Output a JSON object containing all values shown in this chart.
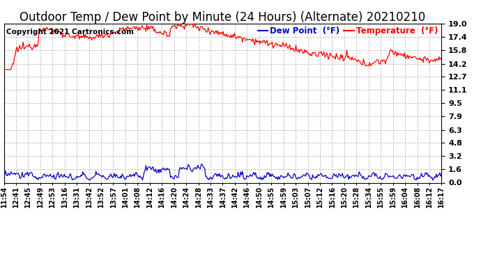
{
  "title": "Outdoor Temp / Dew Point by Minute (24 Hours) (Alternate) 20210210",
  "copyright": "Copyright 2021 Cartronics.com",
  "legend_dew": "Dew Point  (°F)",
  "legend_temp": "Temperature  (°F)",
  "temp_color": "#ff0000",
  "dew_color": "#0000cc",
  "background_color": "#ffffff",
  "grid_color": "#bbbbbb",
  "ylim": [
    0.0,
    19.0
  ],
  "yticks": [
    0.0,
    1.6,
    3.2,
    4.8,
    6.3,
    7.9,
    9.5,
    11.1,
    12.7,
    14.2,
    15.8,
    17.4,
    19.0
  ],
  "title_fontsize": 12,
  "copyright_fontsize": 7.5,
  "legend_fontsize": 8.5,
  "tick_fontsize": 7,
  "ytick_fontsize": 8,
  "xtick_labels": [
    "11:54",
    "12:41",
    "12:45",
    "12:49",
    "12:53",
    "13:16",
    "13:31",
    "13:42",
    "13:52",
    "13:57",
    "14:01",
    "14:08",
    "14:12",
    "14:16",
    "14:20",
    "14:24",
    "14:28",
    "14:33",
    "14:37",
    "14:42",
    "14:46",
    "14:50",
    "14:55",
    "14:59",
    "15:03",
    "15:07",
    "15:12",
    "15:16",
    "15:20",
    "15:28",
    "15:34",
    "15:55",
    "15:59",
    "16:04",
    "16:08",
    "16:12",
    "16:17"
  ]
}
